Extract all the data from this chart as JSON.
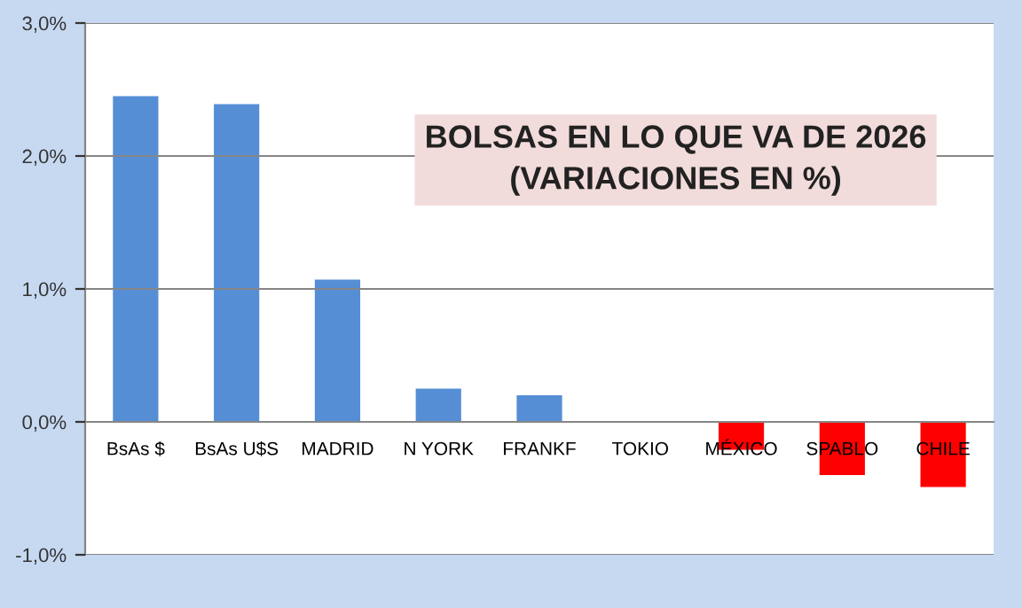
{
  "chart_data": {
    "type": "bar",
    "title": "BOLSAS EN LO QUE VA DE 2026\n(VARIACIONES EN %)",
    "categories": [
      "BsAs $",
      "BsAs U$S",
      "MADRID",
      "N YORK",
      "FRANKF",
      "TOKIO",
      "MÉXICO",
      "SPABLO",
      "CHILE"
    ],
    "values": [
      2.45,
      2.39,
      1.07,
      0.25,
      0.2,
      0,
      -0.21,
      -0.4,
      -0.49
    ],
    "colors": [
      "#558ed5",
      "#558ed5",
      "#558ed5",
      "#558ed5",
      "#558ed5",
      "#558ed5",
      "#ff0000",
      "#ff0000",
      "#ff0000"
    ],
    "ylim": [
      -1,
      3
    ],
    "yticks": [
      {
        "value": -1,
        "label": "-1,0%"
      },
      {
        "value": 0,
        "label": "0,0%"
      },
      {
        "value": 1,
        "label": "1,0%"
      },
      {
        "value": 2,
        "label": "2,0%"
      },
      {
        "value": 3,
        "label": "3,0%"
      }
    ],
    "grid": "y"
  }
}
